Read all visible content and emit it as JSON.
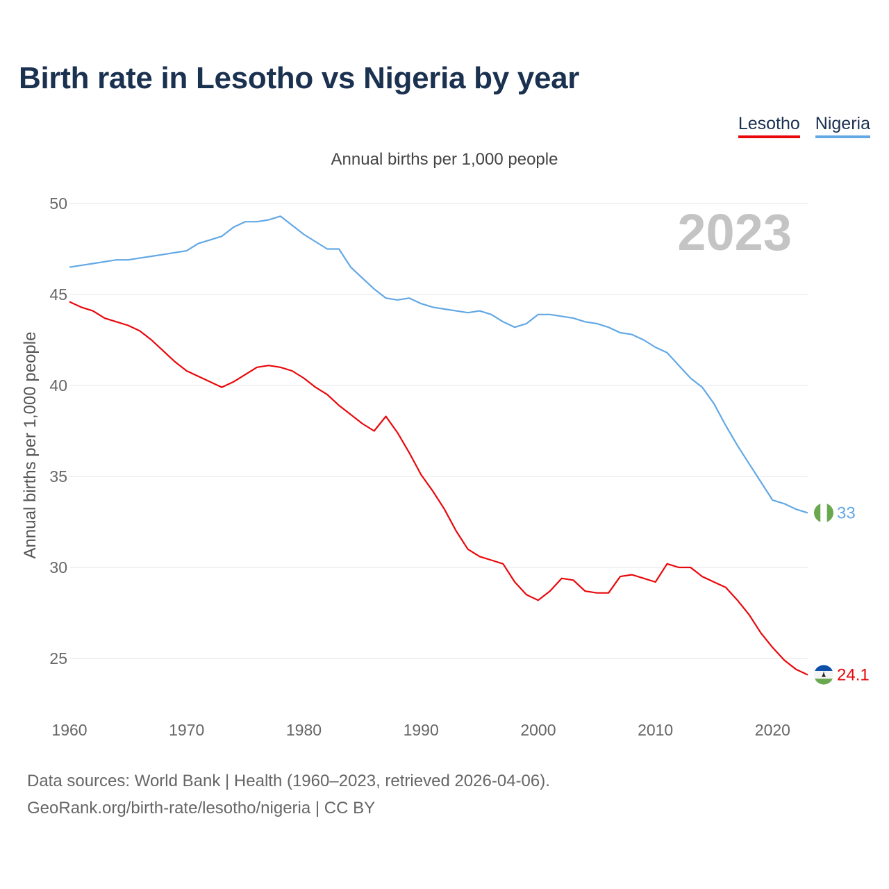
{
  "title": "Birth rate in Lesotho vs Nigeria by year",
  "legend": {
    "lesotho": "Lesotho",
    "nigeria": "Nigeria"
  },
  "footer": {
    "line1": "Data sources: World Bank | Health (1960–2023, retrieved 2026-04-06).",
    "line2": "GeoRank.org/birth-rate/lesotho/nigeria | CC BY"
  },
  "colors": {
    "lesotho": "#e8080b",
    "nigeria": "#62a8e5",
    "year_watermark": "#c4c4c4",
    "grid": "#e6e6e6"
  },
  "icons": {
    "lesotho": "lesotho-flag-icon",
    "nigeria": "nigeria-flag-icon"
  },
  "chart_data": {
    "type": "line",
    "title": "Annual births per 1,000 people",
    "xlabel": "",
    "ylabel": "Annual births per 1,000 people",
    "xlim": [
      1960,
      2023
    ],
    "ylim": [
      22.5,
      50
    ],
    "yticks": [
      25,
      30,
      35,
      40,
      45,
      50
    ],
    "xticks": [
      1960,
      1970,
      1980,
      1990,
      2000,
      2010,
      2020
    ],
    "grid": true,
    "legend_position": "top-right",
    "year_label": "2023",
    "x": [
      1960,
      1961,
      1962,
      1963,
      1964,
      1965,
      1966,
      1967,
      1968,
      1969,
      1970,
      1971,
      1972,
      1973,
      1974,
      1975,
      1976,
      1977,
      1978,
      1979,
      1980,
      1981,
      1982,
      1983,
      1984,
      1985,
      1986,
      1987,
      1988,
      1989,
      1990,
      1991,
      1992,
      1993,
      1994,
      1995,
      1996,
      1997,
      1998,
      1999,
      2000,
      2001,
      2002,
      2003,
      2004,
      2005,
      2006,
      2007,
      2008,
      2009,
      2010,
      2011,
      2012,
      2013,
      2014,
      2015,
      2016,
      2017,
      2018,
      2019,
      2020,
      2021,
      2022,
      2023
    ],
    "series": [
      {
        "name": "Lesotho",
        "end_label": "24.1",
        "values": [
          44.6,
          44.3,
          44.1,
          43.7,
          43.5,
          43.3,
          43.0,
          42.5,
          41.9,
          41.3,
          40.8,
          40.5,
          40.2,
          39.9,
          40.2,
          40.6,
          41.0,
          41.1,
          41.0,
          40.8,
          40.4,
          39.9,
          39.5,
          38.9,
          38.4,
          37.9,
          37.5,
          38.3,
          37.4,
          36.3,
          35.1,
          34.2,
          33.2,
          32.0,
          31.0,
          30.6,
          30.4,
          30.2,
          29.2,
          28.5,
          28.2,
          28.7,
          29.4,
          29.3,
          28.7,
          28.6,
          28.6,
          29.5,
          29.6,
          29.4,
          29.2,
          30.2,
          30.0,
          30.0,
          29.5,
          29.2,
          28.9,
          28.2,
          27.4,
          26.4,
          25.6,
          24.9,
          24.4,
          24.1
        ]
      },
      {
        "name": "Nigeria",
        "end_label": "33",
        "values": [
          46.5,
          46.6,
          46.7,
          46.8,
          46.9,
          46.9,
          47.0,
          47.1,
          47.2,
          47.3,
          47.4,
          47.8,
          48.0,
          48.2,
          48.7,
          49.0,
          49.0,
          49.1,
          49.3,
          48.8,
          48.3,
          47.9,
          47.5,
          47.5,
          46.5,
          45.9,
          45.3,
          44.8,
          44.7,
          44.8,
          44.5,
          44.3,
          44.2,
          44.1,
          44.0,
          44.1,
          43.9,
          43.5,
          43.2,
          43.4,
          43.9,
          43.9,
          43.8,
          43.7,
          43.5,
          43.4,
          43.2,
          42.9,
          42.8,
          42.5,
          42.1,
          41.8,
          41.1,
          40.4,
          39.9,
          39.0,
          37.8,
          36.7,
          35.7,
          34.7,
          33.7,
          33.5,
          33.2,
          33.0
        ]
      }
    ]
  }
}
